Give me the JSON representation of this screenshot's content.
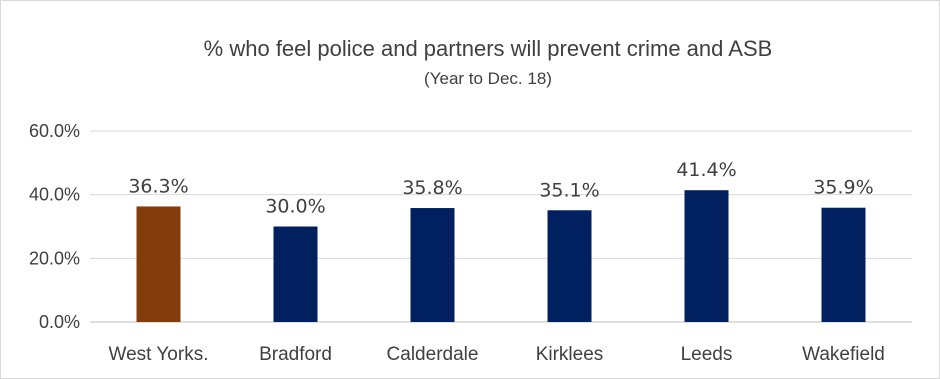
{
  "chart_data": {
    "type": "bar",
    "title": "% who feel police and partners will prevent crime and ASB",
    "subtitle": "(Year to Dec. 18)",
    "categories": [
      "West Yorks.",
      "Bradford",
      "Calderdale",
      "Kirklees",
      "Leeds",
      "Wakefield"
    ],
    "values": [
      36.3,
      30.0,
      35.8,
      35.1,
      41.4,
      35.9
    ],
    "data_labels": [
      "36.3%",
      "30.0%",
      "35.8%",
      "35.1%",
      "41.4%",
      "35.9%"
    ],
    "ylim": [
      0,
      60
    ],
    "yticks": [
      0,
      20,
      40,
      60
    ],
    "ytick_labels": [
      "0.0%",
      "20.0%",
      "40.0%",
      "60.0%"
    ],
    "grid": true,
    "legend": "none",
    "colors": [
      "#843c0c",
      "#002060",
      "#002060",
      "#002060",
      "#002060",
      "#002060"
    ]
  }
}
